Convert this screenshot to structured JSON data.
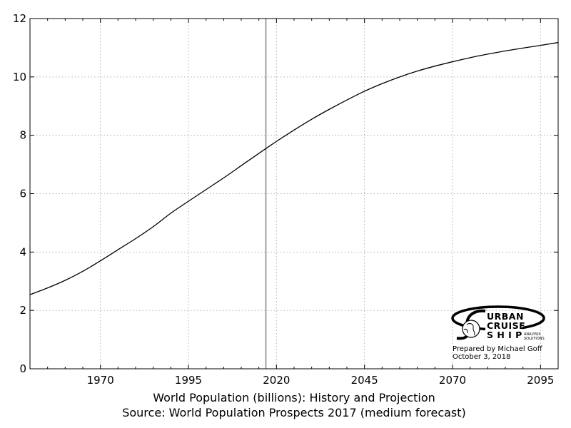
{
  "chart_data": {
    "type": "line",
    "title": "",
    "xlabel": "",
    "ylabel": "",
    "caption_lines": [
      "World Population (billions): History and Projection",
      "Source: World Population Prospects 2017 (medium forecast)"
    ],
    "xlim": [
      1950,
      2100
    ],
    "ylim": [
      0,
      12
    ],
    "x_ticks": [
      1970,
      1995,
      2020,
      2045,
      2070,
      2095
    ],
    "y_ticks": [
      0,
      2,
      4,
      6,
      8,
      10,
      12
    ],
    "grid": true,
    "reference_line_x": 2017,
    "series": [
      {
        "x": [
          1950,
          1955,
          1960,
          1965,
          1970,
          1975,
          1980,
          1985,
          1990,
          1995,
          2000,
          2005,
          2010,
          2015,
          2020,
          2025,
          2030,
          2035,
          2040,
          2045,
          2050,
          2055,
          2060,
          2065,
          2070,
          2075,
          2080,
          2085,
          2090,
          2095,
          2100
        ],
        "y": [
          2.54,
          2.77,
          3.03,
          3.34,
          3.7,
          4.08,
          4.46,
          4.87,
          5.33,
          5.74,
          6.14,
          6.54,
          6.96,
          7.38,
          7.79,
          8.18,
          8.55,
          8.89,
          9.21,
          9.51,
          9.77,
          10.0,
          10.2,
          10.37,
          10.52,
          10.66,
          10.78,
          10.89,
          10.99,
          11.08,
          11.18
        ],
        "color": "#000000"
      }
    ]
  },
  "logo": {
    "line1": "URBAN",
    "line2": "CRUISE",
    "line3": "S H I P",
    "tag1": "ANALYSIS",
    "tag2": "SOLUTIONS"
  },
  "credit": {
    "prepared": "Prepared by Michael Goff",
    "date": "October 3, 2018"
  }
}
